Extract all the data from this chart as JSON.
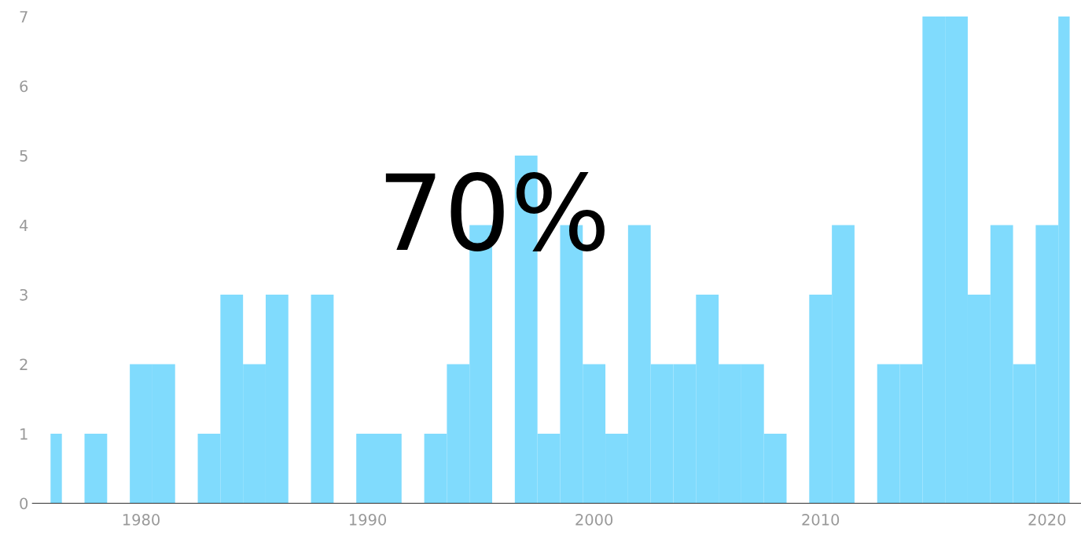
{
  "chart_data": {
    "type": "histogram",
    "bins": [
      1976,
      1976.5,
      1977.5,
      1978.5,
      1979.5,
      1980.5,
      1981.5,
      1982.5,
      1983.5,
      1984.5,
      1985.5,
      1986.5,
      1987.5,
      1988.5,
      1989.5,
      1990.5,
      1991.5,
      1992.5,
      1993.5,
      1994.5,
      1995.5,
      1996.5,
      1997.5,
      1998.5,
      1999.5,
      2000.5,
      2001.5,
      2002.5,
      2003.5,
      2004.5,
      2005.5,
      2006.5,
      2007.5,
      2008.5,
      2009.5,
      2010.5,
      2011.5,
      2012.5,
      2013.5,
      2014.5,
      2015.5,
      2016.5,
      2017.5,
      2018.5,
      2019.5,
      2020.5,
      2021
    ],
    "values": [
      1,
      0,
      1,
      0,
      2,
      2,
      0,
      1,
      3,
      2,
      3,
      0,
      3,
      0,
      1,
      1,
      0,
      1,
      2,
      4,
      0,
      5,
      1,
      4,
      2,
      1,
      4,
      2,
      2,
      3,
      2,
      2,
      1,
      0,
      3,
      4,
      0,
      2,
      2,
      7,
      7,
      3,
      4,
      2,
      4,
      7
    ],
    "color": "#80dbfd",
    "xlim": [
      1975.2,
      2021.5
    ],
    "xticks": [
      1980,
      1990,
      2000,
      2010,
      2020
    ],
    "ylim": [
      0,
      7
    ],
    "yticks": [
      0,
      1,
      2,
      3,
      4,
      5,
      6,
      7
    ],
    "annotations": [
      "70%"
    ]
  }
}
